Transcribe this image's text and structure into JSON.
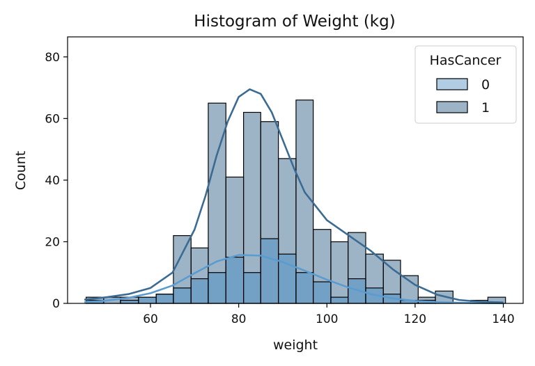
{
  "chart_data": {
    "type": "histogram",
    "title": "Histogram of Weight (kg)",
    "xlabel": "weight",
    "ylabel": "Count",
    "xlim": [
      41.2,
      144.5
    ],
    "ylim": [
      0,
      86.5
    ],
    "xticks": [
      60,
      80,
      100,
      120,
      140
    ],
    "yticks": [
      0,
      20,
      40,
      60,
      80
    ],
    "bin_edges": [
      45.4,
      49.4,
      53.2,
      57.3,
      61.3,
      65.2,
      69.2,
      73.1,
      77.1,
      81.1,
      85.0,
      89.0,
      93.0,
      96.9,
      100.9,
      104.8,
      108.8,
      112.8,
      116.7,
      120.7,
      124.6,
      128.6,
      132.6,
      136.5,
      140.5
    ],
    "grid": false,
    "legend": {
      "title": "HasCancer",
      "placement": "top-right"
    },
    "colors": {
      "0": "#4f91c3",
      "1": "#3c6a90",
      "edge": "#000000"
    },
    "series": [
      {
        "name": "0",
        "values": [
          1,
          0,
          1,
          2,
          3,
          5,
          8,
          10,
          15,
          10,
          21,
          16,
          10,
          7,
          2,
          8,
          5,
          3,
          1,
          1,
          0,
          0,
          0,
          0
        ]
      },
      {
        "name": "1",
        "values": [
          2,
          2,
          2,
          2,
          3,
          22,
          18,
          65,
          41,
          62,
          59,
          47,
          66,
          24,
          20,
          23,
          16,
          14,
          9,
          2,
          4,
          0,
          1,
          2
        ]
      }
    ],
    "kde": [
      {
        "name": "0",
        "x": [
          45,
          50,
          55,
          60,
          65,
          70,
          75,
          80,
          85,
          90,
          95,
          100,
          105,
          110,
          115,
          120,
          125,
          130,
          135,
          140
        ],
        "y": [
          0.4,
          0.9,
          1.8,
          3.3,
          5.8,
          9.8,
          13.6,
          15.7,
          15.5,
          13.4,
          10.6,
          7.7,
          5.1,
          3.0,
          1.6,
          0.8,
          0.4,
          0.2,
          0.1,
          0.05
        ]
      },
      {
        "name": "1",
        "x": [
          45,
          50,
          55,
          60,
          65,
          70,
          72.5,
          75,
          77.5,
          80,
          82.5,
          85,
          87.5,
          90,
          92.5,
          95,
          100,
          105,
          110,
          115,
          120,
          125,
          130,
          135,
          140
        ],
        "y": [
          1.2,
          2.0,
          3.0,
          5.0,
          10.0,
          24.0,
          35.0,
          48.0,
          59.0,
          67.0,
          69.5,
          68.0,
          62.0,
          53.0,
          44.0,
          36.0,
          27.0,
          22.0,
          17.0,
          11.0,
          6.0,
          2.8,
          1.1,
          0.5,
          0.3
        ]
      }
    ]
  }
}
